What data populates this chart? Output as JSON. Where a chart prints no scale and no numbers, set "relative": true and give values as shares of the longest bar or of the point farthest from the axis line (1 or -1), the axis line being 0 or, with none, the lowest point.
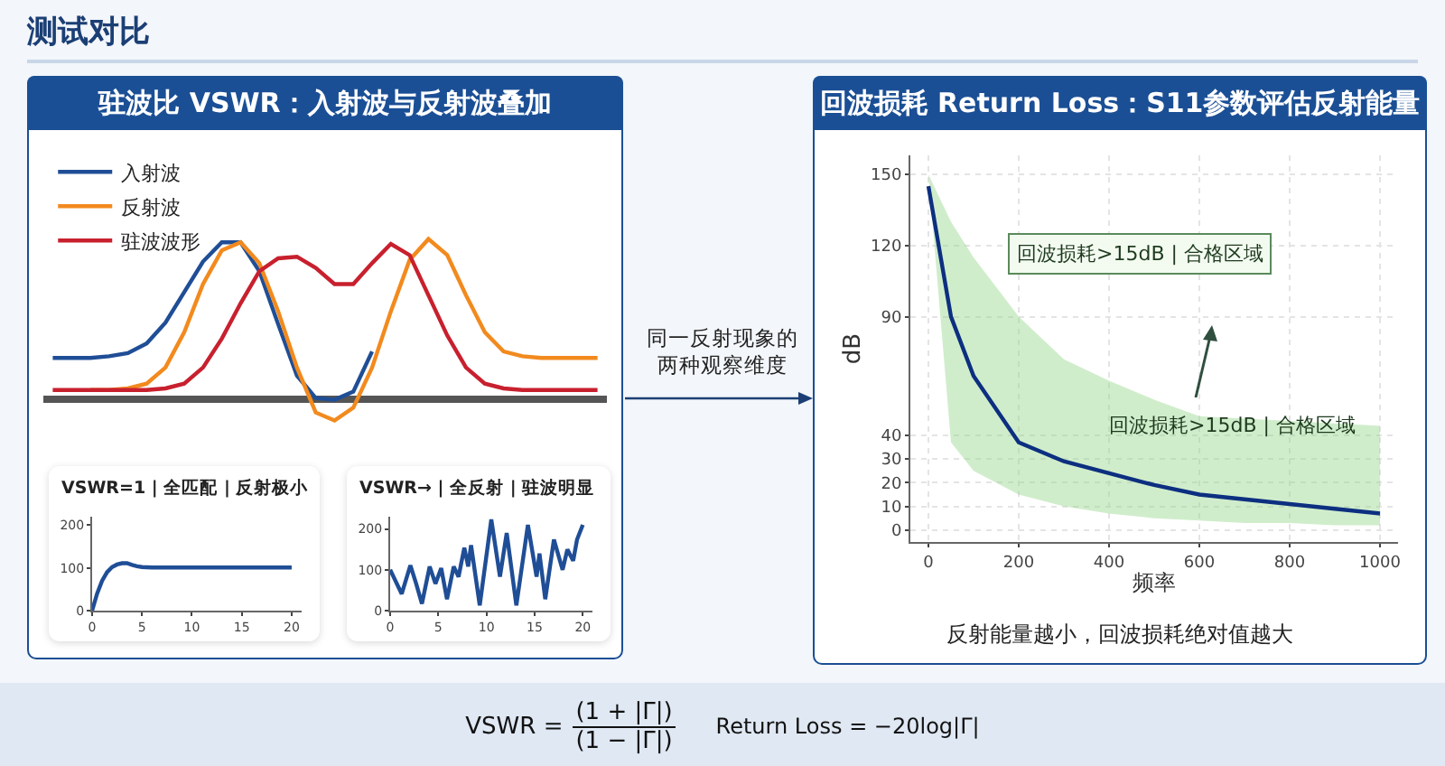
{
  "chart_data": [
    {
      "type": "line",
      "title": "驻波比 VSWR：入射波与反射波叠加",
      "relative": true,
      "legend": "top left",
      "tick_labels": false,
      "grid": false,
      "categories": [
        null,
        null,
        null,
        null,
        null,
        null,
        null,
        null,
        null,
        null,
        null,
        null,
        null,
        null,
        null,
        null,
        null,
        null,
        null,
        null,
        null,
        null,
        null,
        null,
        null,
        null,
        null,
        null,
        null,
        null
      ],
      "series": [
        {
          "name": "入射波",
          "color": "#1f4e96",
          "values": [
            0.26,
            0.26,
            0.26,
            0.27,
            0.29,
            0.35,
            0.48,
            0.67,
            0.86,
            0.98,
            0.98,
            0.8,
            0.47,
            0.15,
            0.01,
            0.0,
            0.05,
            0.3,
            null,
            null,
            null,
            null,
            null,
            null,
            null,
            null,
            null,
            null,
            null,
            null
          ]
        },
        {
          "name": "反射波",
          "color": "#f28a1e",
          "values": [
            null,
            null,
            0.06,
            0.06,
            0.07,
            0.1,
            0.2,
            0.42,
            0.72,
            0.93,
            0.98,
            0.85,
            0.55,
            0.2,
            -0.08,
            -0.13,
            -0.05,
            0.2,
            0.55,
            0.87,
            1.0,
            0.9,
            0.65,
            0.42,
            0.3,
            0.27,
            0.26,
            0.26,
            0.26,
            0.26
          ]
        },
        {
          "name": "驻波波形",
          "color": "#c8202e",
          "values": [
            0.06,
            0.06,
            0.06,
            0.06,
            0.06,
            0.06,
            0.07,
            0.1,
            0.2,
            0.38,
            0.6,
            0.8,
            0.88,
            0.89,
            0.82,
            0.72,
            0.72,
            0.85,
            0.97,
            0.9,
            0.65,
            0.4,
            0.2,
            0.1,
            0.07,
            0.06,
            0.06,
            0.06,
            0.06,
            0.06
          ]
        }
      ]
    },
    {
      "type": "line",
      "title": "VSWR=1 | 全匹配 | 反射极小",
      "color": "#1f4e96",
      "grid": false,
      "x": [
        0,
        0.5,
        1,
        1.5,
        2,
        2.5,
        3,
        3.5,
        4,
        4.5,
        5,
        6,
        8,
        20
      ],
      "values": [
        0,
        40,
        70,
        90,
        102,
        108,
        111,
        111,
        107,
        104,
        102,
        101,
        101,
        101
      ],
      "xlim": [
        0,
        21
      ],
      "xticks": [
        0,
        5,
        10,
        15,
        20
      ],
      "ylim": [
        0,
        220
      ],
      "yticks": [
        0,
        100,
        200
      ]
    },
    {
      "type": "line",
      "title": "VSWR→ | 全反射 | 驻波明显",
      "color": "#1f4e96",
      "grid": false,
      "x": [
        0,
        1.2,
        2.1,
        2.7,
        3.3,
        4.1,
        4.7,
        5.3,
        5.9,
        6.6,
        7.1,
        7.7,
        8.1,
        8.4,
        9.3,
        10.5,
        11.4,
        12.1,
        13.1,
        14.3,
        15.2,
        15.5,
        16.1,
        17.0,
        17.9,
        18.4,
        19.0,
        19.4,
        20
      ],
      "values": [
        100,
        41,
        111,
        66,
        17,
        108,
        66,
        104,
        28,
        108,
        83,
        154,
        108,
        160,
        13,
        223,
        83,
        190,
        13,
        210,
        83,
        140,
        28,
        174,
        100,
        150,
        122,
        174,
        210
      ],
      "xlim": [
        0,
        21
      ],
      "xticks": [
        0,
        5,
        10,
        15,
        20
      ],
      "ylim": [
        0,
        230
      ],
      "yticks": [
        0,
        100,
        200
      ]
    },
    {
      "type": "line",
      "title": "回波损耗 Return Loss：S11参数评估反射能量",
      "xlabel": "频率",
      "ylabel": "dB",
      "grid": true,
      "x": [
        0,
        50,
        100,
        200,
        300,
        400,
        500,
        600,
        700,
        800,
        900,
        1000
      ],
      "series": [
        {
          "color": "#0d2f80",
          "values": [
            145,
            90,
            65,
            37,
            29,
            24,
            19,
            15,
            13,
            11,
            9,
            7
          ],
          "lower": [
            150,
            37,
            25,
            15,
            10,
            7,
            5,
            4,
            3,
            3,
            2,
            2
          ],
          "upper": [
            150,
            130,
            115,
            90,
            72,
            63,
            55,
            48,
            47,
            46,
            45,
            44
          ]
        }
      ],
      "xlim": [
        -40,
        1040
      ],
      "xticks": [
        0,
        200,
        400,
        600,
        800,
        1000
      ],
      "ylim": [
        -5,
        158
      ],
      "yticks": [
        0,
        10,
        20,
        30,
        40,
        90,
        120,
        150
      ],
      "annotations": [
        "回波损耗>15dB | 合格区域",
        "回波损耗>15dB | 合格区域",
        "反射能量越小，回波损耗绝对值越大"
      ]
    },
    {
      "type": "other",
      "title": "测试对比",
      "annotations": [
        "同一反射现象的两种观察维度",
        "VSWR =",
        "(1 + |Γ|)",
        "(1 − |Γ|)",
        "Return Loss = −20log|Γ|"
      ]
    }
  ]
}
